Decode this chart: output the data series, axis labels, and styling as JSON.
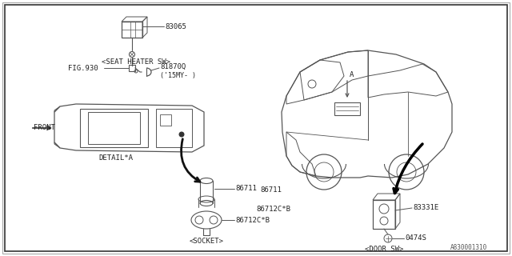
{
  "bg_color": "#ffffff",
  "lc": "#555555",
  "tc": "#222222",
  "part_ref": "A830001310",
  "labels": {
    "seat_heater": "<SEAT HEATER SW>",
    "socket": "<SOCKET>",
    "door_sw": "<DOOR SW>",
    "front": "FRONT",
    "detail_a": "DETAIL*A",
    "fig930": "FIG.930",
    "p83065": "83065",
    "p81870q": "81870Q",
    "p15my": "('15MY- )",
    "p86711": "86711",
    "p86712cb": "86712C*B",
    "p83331e": "83331E",
    "p0474s": "0474S",
    "A": "A"
  }
}
